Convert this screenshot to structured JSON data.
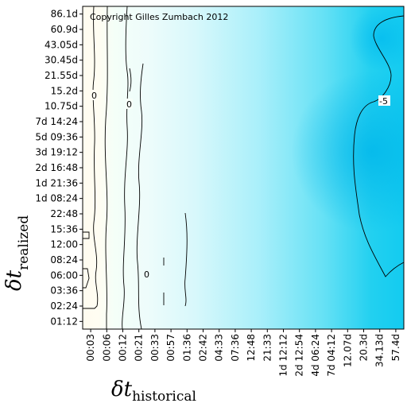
{
  "chart_data": {
    "type": "heatmap",
    "title": "",
    "copyright": "Copyright Gilles Zumbach 2012",
    "xlabel": {
      "symbol": "δt",
      "subscript": "historical"
    },
    "ylabel": {
      "symbol": "δt",
      "subscript": "realized"
    },
    "x_ticks": [
      "00:03",
      "00:06",
      "00:12",
      "00:21",
      "00:33",
      "00:57",
      "01:36",
      "02:42",
      "04:33",
      "07:36",
      "12:48",
      "21:33",
      "1d 12:12",
      "2d 12:54",
      "4d 06:24",
      "7d 04:12",
      "12.07d",
      "20.3d",
      "34.13d",
      "57.4d"
    ],
    "y_ticks": [
      "01:12",
      "02:24",
      "03:36",
      "06:00",
      "08:24",
      "12:00",
      "15:36",
      "22:48",
      "1d 08:24",
      "1d 21:36",
      "2d 16:48",
      "3d 19:12",
      "5d 09:36",
      "7d 14:24",
      "10.75d",
      "15.2d",
      "21.55d",
      "30.45d",
      "43.05d",
      "60.9d",
      "86.1d"
    ],
    "contour_levels": [
      {
        "value": 0,
        "label": "0"
      },
      {
        "value": -5,
        "label": "-5"
      }
    ],
    "colors": {
      "low": "#00ccee",
      "mid": "#e6fbfd",
      "high": "#fffcf0",
      "contour": "#000000"
    }
  }
}
